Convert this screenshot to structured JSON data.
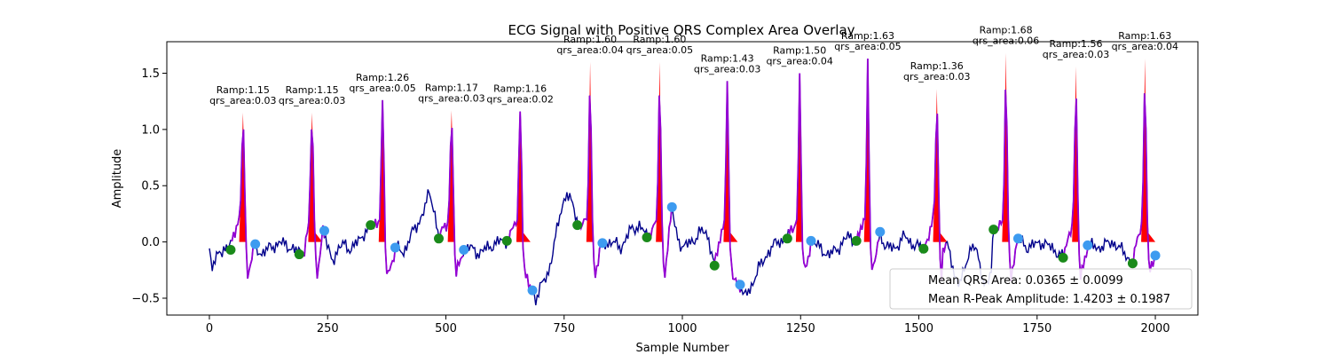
{
  "chart_data": {
    "type": "line",
    "title": "ECG Signal with Positive QRS Complex Area Overlay",
    "xlabel": "Sample Number",
    "ylabel": "Amplitude",
    "xlim": [
      -90,
      2090
    ],
    "ylim": [
      -0.65,
      1.78
    ],
    "xticks": [
      0,
      250,
      500,
      750,
      1000,
      1250,
      1500,
      1750,
      2000
    ],
    "xtick_labels": [
      "0",
      "250",
      "500",
      "750",
      "1000",
      "1250",
      "1500",
      "1750",
      "2000"
    ],
    "yticks": [
      -0.5,
      0.0,
      0.5,
      1.0,
      1.5
    ],
    "ytick_labels": [
      "−0.5",
      "0.0",
      "0.5",
      "1.0",
      "1.5"
    ],
    "grid": false,
    "legend_position": "lower-right",
    "legend": [
      "Mean QRS Area: 0.0365 ± 0.0099",
      "Mean R-Peak Amplitude: 1.4203 ± 0.1987"
    ],
    "colors": {
      "ecg": "#00008b",
      "qrs_segment": "#9400d3",
      "area_fill": "#ff0000",
      "onset_marker": "#1a8a1a",
      "offset_marker": "#3d9bf0"
    },
    "baseline_points": [
      [
        0,
        -0.1
      ],
      [
        5,
        -0.25
      ],
      [
        12,
        -0.15
      ],
      [
        20,
        -0.05
      ],
      [
        28,
        -0.12
      ],
      [
        35,
        -0.08
      ],
      [
        80,
        -0.02
      ],
      [
        95,
        -0.05
      ],
      [
        110,
        -0.1
      ],
      [
        130,
        -0.05
      ],
      [
        150,
        0.0
      ],
      [
        160,
        -0.03
      ],
      [
        175,
        -0.05
      ],
      [
        190,
        -0.1
      ],
      [
        200,
        -0.08
      ],
      [
        240,
        0.1
      ],
      [
        250,
        -0.05
      ],
      [
        260,
        -0.15
      ],
      [
        270,
        -0.1
      ],
      [
        285,
        0.0
      ],
      [
        300,
        -0.08
      ],
      [
        320,
        0.05
      ],
      [
        335,
        0.1
      ],
      [
        345,
        0.15
      ],
      [
        395,
        -0.05
      ],
      [
        410,
        -0.1
      ],
      [
        425,
        0.05
      ],
      [
        440,
        0.15
      ],
      [
        455,
        0.3
      ],
      [
        465,
        0.43
      ],
      [
        475,
        0.3
      ],
      [
        485,
        0.03
      ],
      [
        535,
        -0.08
      ],
      [
        550,
        -0.05
      ],
      [
        570,
        -0.1
      ],
      [
        590,
        -0.05
      ],
      [
        610,
        0.0
      ],
      [
        630,
        0.01
      ],
      [
        680,
        -0.43
      ],
      [
        690,
        -0.5
      ],
      [
        700,
        -0.4
      ],
      [
        715,
        -0.3
      ],
      [
        730,
        0.0
      ],
      [
        745,
        0.3
      ],
      [
        755,
        0.45
      ],
      [
        770,
        0.3
      ],
      [
        780,
        0.15
      ],
      [
        830,
        -0.02
      ],
      [
        850,
        0.0
      ],
      [
        870,
        -0.05
      ],
      [
        890,
        0.1
      ],
      [
        910,
        0.15
      ],
      [
        925,
        0.04
      ],
      [
        978,
        0.31
      ],
      [
        985,
        0.1
      ],
      [
        1000,
        -0.05
      ],
      [
        1020,
        0.0
      ],
      [
        1040,
        0.1
      ],
      [
        1055,
        0.05
      ],
      [
        1068,
        -0.21
      ],
      [
        1122,
        -0.38
      ],
      [
        1130,
        -0.5
      ],
      [
        1145,
        -0.4
      ],
      [
        1160,
        -0.25
      ],
      [
        1180,
        -0.1
      ],
      [
        1200,
        0.0
      ],
      [
        1222,
        0.03
      ],
      [
        1272,
        0.01
      ],
      [
        1290,
        -0.05
      ],
      [
        1310,
        -0.12
      ],
      [
        1330,
        -0.05
      ],
      [
        1350,
        0.05
      ],
      [
        1368,
        0.0
      ],
      [
        1418,
        0.09
      ],
      [
        1430,
        -0.05
      ],
      [
        1450,
        -0.05
      ],
      [
        1470,
        0.05
      ],
      [
        1490,
        -0.03
      ],
      [
        1510,
        -0.06
      ]
    ],
    "beats": [
      {
        "onset": 45,
        "onset_y": -0.07,
        "peak": 71,
        "r_amp": 1.15,
        "offset": 97,
        "offset_y": -0.02,
        "qrs_area": 0.03
      },
      {
        "onset": 190,
        "onset_y": -0.11,
        "peak": 217,
        "r_amp": 1.15,
        "offset": 243,
        "offset_y": 0.1,
        "qrs_area": 0.03
      },
      {
        "onset": 341,
        "onset_y": 0.15,
        "peak": 366,
        "r_amp": 1.26,
        "offset": 393,
        "offset_y": -0.05,
        "qrs_area": 0.05
      },
      {
        "onset": 485,
        "onset_y": 0.03,
        "peak": 512,
        "r_amp": 1.17,
        "offset": 538,
        "offset_y": -0.07,
        "qrs_area": 0.03
      },
      {
        "onset": 629,
        "onset_y": 0.01,
        "peak": 657,
        "r_amp": 1.16,
        "offset": 683,
        "offset_y": -0.43,
        "qrs_area": 0.02
      },
      {
        "onset": 778,
        "onset_y": 0.15,
        "peak": 805,
        "r_amp": 1.6,
        "offset": 831,
        "offset_y": -0.01,
        "qrs_area": 0.04
      },
      {
        "onset": 925,
        "onset_y": 0.04,
        "peak": 952,
        "r_amp": 1.6,
        "offset": 978,
        "offset_y": 0.31,
        "qrs_area": 0.05
      },
      {
        "onset": 1068,
        "onset_y": -0.21,
        "peak": 1095,
        "r_amp": 1.43,
        "offset": 1122,
        "offset_y": -0.38,
        "qrs_area": 0.03
      },
      {
        "onset": 1222,
        "onset_y": 0.03,
        "peak": 1248,
        "r_amp": 1.5,
        "offset": 1272,
        "offset_y": 0.01,
        "qrs_area": 0.04
      },
      {
        "onset": 1368,
        "onset_y": 0.01,
        "peak": 1392,
        "r_amp": 1.63,
        "offset": 1418,
        "offset_y": 0.09,
        "qrs_area": 0.05
      },
      {
        "onset": 1510,
        "onset_y": -0.06,
        "peak": 1538,
        "r_amp": 1.36,
        "offset": null,
        "offset_y": null,
        "qrs_area": 0.03
      },
      {
        "onset": 1658,
        "onset_y": 0.11,
        "peak": 1684,
        "r_amp": 1.68,
        "offset": 1710,
        "offset_y": 0.03,
        "qrs_area": 0.06
      },
      {
        "onset": 1805,
        "onset_y": -0.14,
        "peak": 1832,
        "r_amp": 1.56,
        "offset": 1857,
        "offset_y": -0.03,
        "qrs_area": 0.03
      },
      {
        "onset": 1952,
        "onset_y": -0.19,
        "peak": 1978,
        "r_amp": 1.63,
        "offset": 2000,
        "offset_y": -0.12,
        "qrs_area": 0.04
      }
    ]
  }
}
